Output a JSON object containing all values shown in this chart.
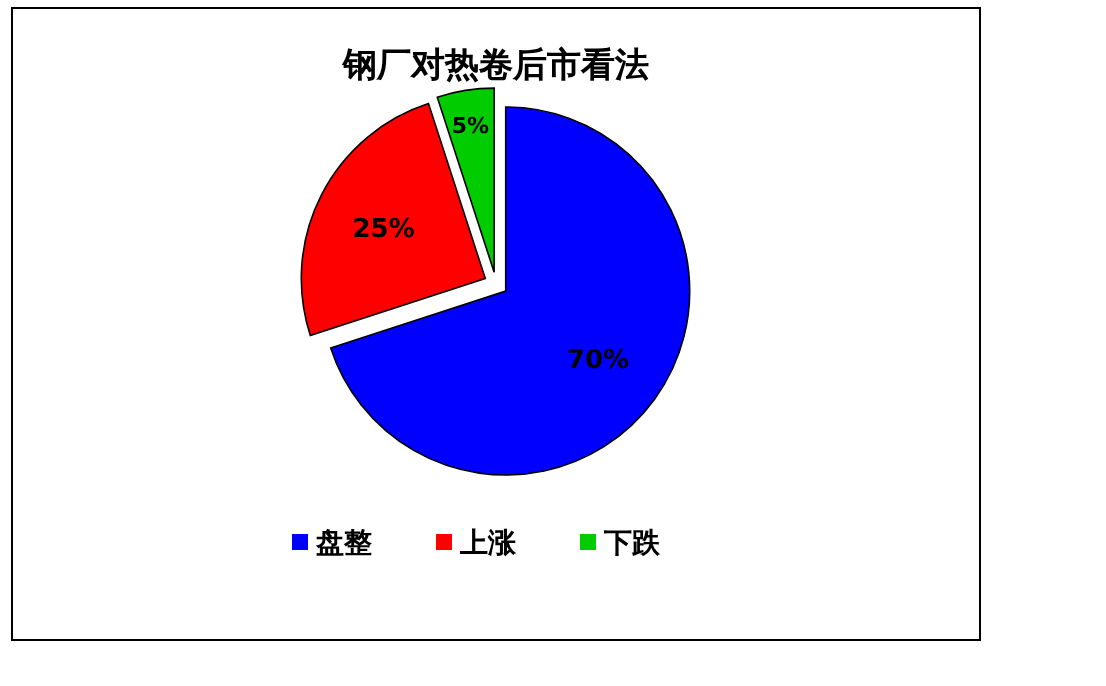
{
  "chart_data": {
    "type": "pie",
    "title": "钢厂对热卷后市看法",
    "categories": [
      "盘整",
      "上涨",
      "下跌"
    ],
    "values": [
      70,
      25,
      5
    ],
    "colors": [
      "#0000ff",
      "#ff0000",
      "#00cc00"
    ],
    "value_labels": [
      "70%",
      "25%",
      "5%"
    ],
    "legend": "bottom"
  }
}
